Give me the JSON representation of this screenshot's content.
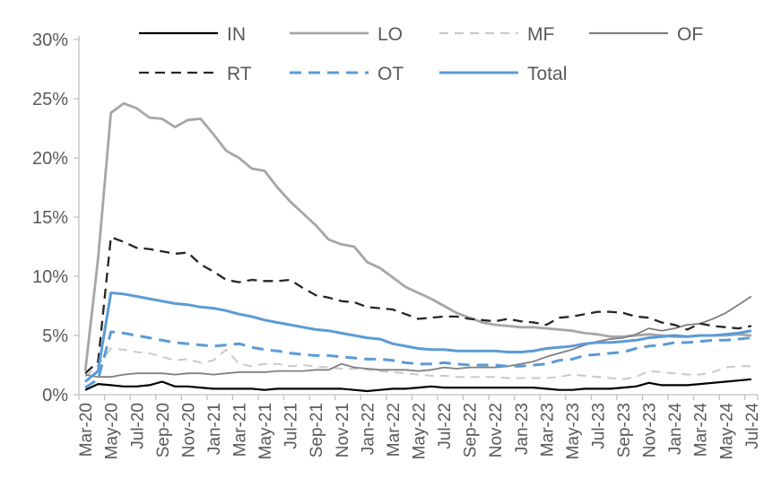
{
  "chart_data": {
    "type": "line",
    "title": "",
    "y_axis": {
      "min": 0,
      "max": 30,
      "tick_step": 5,
      "tick_labels": [
        "0%",
        "5%",
        "10%",
        "15%",
        "20%",
        "25%",
        "30%"
      ],
      "grid": false
    },
    "x_axis": {
      "categories": [
        "Mar-20",
        "Apr-20",
        "May-20",
        "Jun-20",
        "Jul-20",
        "Aug-20",
        "Sep-20",
        "Oct-20",
        "Nov-20",
        "Dec-20",
        "Jan-21",
        "Feb-21",
        "Mar-21",
        "Apr-21",
        "May-21",
        "Jun-21",
        "Jul-21",
        "Aug-21",
        "Sep-21",
        "Oct-21",
        "Nov-21",
        "Dec-21",
        "Jan-22",
        "Feb-22",
        "Mar-22",
        "Apr-22",
        "May-22",
        "Jun-22",
        "Jul-22",
        "Aug-22",
        "Sep-22",
        "Oct-22",
        "Nov-22",
        "Dec-22",
        "Jan-23",
        "Feb-23",
        "Mar-23",
        "Apr-23",
        "May-23",
        "Jun-23",
        "Jul-23",
        "Aug-23",
        "Sep-23",
        "Oct-23",
        "Nov-23",
        "Dec-23",
        "Jan-24",
        "Feb-24",
        "Mar-24",
        "Apr-24",
        "May-24",
        "Jun-24",
        "Jul-24"
      ],
      "label_every": 2,
      "tick_labels": [
        "Mar-20",
        "May-20",
        "Jul-20",
        "Sep-20",
        "Nov-20",
        "Jan-21",
        "Mar-21",
        "May-21",
        "Jul-21",
        "Sep-21",
        "Nov-21",
        "Jan-22",
        "Mar-22",
        "May-22",
        "Jul-22",
        "Sep-22",
        "Nov-22",
        "Jan-23",
        "Mar-23",
        "May-23",
        "Jul-23",
        "Sep-23",
        "Nov-23",
        "Jan-24",
        "Mar-24",
        "May-24",
        "Jul-24"
      ]
    },
    "legend": {
      "position": "top",
      "rows": [
        [
          "IN",
          "LO",
          "MF",
          "OF"
        ],
        [
          "RT",
          "OT",
          "Total"
        ]
      ]
    },
    "series": [
      {
        "name": "IN",
        "color": "#000000",
        "style": "solid",
        "width": 2.2,
        "dash": "",
        "values": [
          0.4,
          0.9,
          0.8,
          0.7,
          0.7,
          0.8,
          1.1,
          0.7,
          0.7,
          0.6,
          0.5,
          0.5,
          0.5,
          0.5,
          0.4,
          0.5,
          0.5,
          0.5,
          0.5,
          0.5,
          0.5,
          0.4,
          0.3,
          0.4,
          0.5,
          0.5,
          0.6,
          0.7,
          0.6,
          0.6,
          0.6,
          0.6,
          0.6,
          0.6,
          0.6,
          0.6,
          0.5,
          0.4,
          0.4,
          0.5,
          0.5,
          0.5,
          0.6,
          0.7,
          1.0,
          0.8,
          0.8,
          0.8,
          0.9,
          1.0,
          1.1,
          1.2,
          1.3
        ]
      },
      {
        "name": "LO",
        "color": "#A6A6A6",
        "style": "solid",
        "width": 2.8,
        "dash": "",
        "values": [
          2.0,
          11.5,
          23.8,
          24.6,
          24.2,
          23.4,
          23.3,
          22.6,
          23.2,
          23.3,
          22.0,
          20.6,
          20.0,
          19.1,
          18.9,
          17.5,
          16.3,
          15.3,
          14.3,
          13.1,
          12.7,
          12.5,
          11.2,
          10.7,
          9.9,
          9.1,
          8.6,
          8.1,
          7.5,
          6.9,
          6.5,
          6.1,
          5.9,
          5.8,
          5.7,
          5.7,
          5.6,
          5.5,
          5.4,
          5.2,
          5.1,
          4.9,
          4.9,
          5.0,
          5.1,
          5.0,
          4.9,
          4.9,
          5.0,
          5.0,
          5.0,
          5.1,
          5.0
        ]
      },
      {
        "name": "MF",
        "color": "#C9C9C9",
        "style": "dashed",
        "width": 2.0,
        "dash": "10,7",
        "values": [
          1.5,
          2.5,
          3.9,
          3.8,
          3.6,
          3.5,
          3.2,
          2.9,
          3.0,
          2.7,
          2.9,
          3.8,
          2.6,
          2.4,
          2.6,
          2.6,
          2.4,
          2.5,
          2.4,
          2.3,
          2.2,
          2.2,
          2.1,
          2.0,
          1.9,
          1.8,
          1.7,
          1.6,
          1.6,
          1.5,
          1.5,
          1.5,
          1.5,
          1.4,
          1.4,
          1.4,
          1.4,
          1.5,
          1.7,
          1.6,
          1.5,
          1.4,
          1.3,
          1.5,
          2.0,
          1.9,
          1.8,
          1.7,
          1.7,
          1.9,
          2.3,
          2.4,
          2.4
        ]
      },
      {
        "name": "OF",
        "color": "#7F7F7F",
        "style": "solid",
        "width": 1.8,
        "dash": "",
        "values": [
          1.7,
          1.5,
          1.5,
          1.7,
          1.8,
          1.8,
          1.8,
          1.7,
          1.8,
          1.8,
          1.7,
          1.8,
          1.9,
          1.9,
          1.9,
          2.0,
          2.0,
          2.0,
          2.1,
          2.1,
          2.6,
          2.3,
          2.2,
          2.1,
          2.1,
          2.1,
          2.0,
          2.1,
          2.3,
          2.2,
          2.3,
          2.3,
          2.3,
          2.4,
          2.6,
          2.8,
          3.2,
          3.5,
          3.8,
          4.2,
          4.5,
          4.7,
          4.8,
          5.1,
          5.6,
          5.4,
          5.6,
          5.9,
          6.0,
          6.4,
          6.9,
          7.6,
          8.3
        ]
      },
      {
        "name": "RT",
        "color": "#262626",
        "style": "dashed",
        "width": 2.3,
        "dash": "11,7",
        "values": [
          1.8,
          2.8,
          13.3,
          12.9,
          12.4,
          12.3,
          12.1,
          11.9,
          12.0,
          11.0,
          10.4,
          9.7,
          9.5,
          9.7,
          9.6,
          9.6,
          9.7,
          9.0,
          8.4,
          8.2,
          7.9,
          7.8,
          7.4,
          7.3,
          7.2,
          6.8,
          6.4,
          6.5,
          6.6,
          6.6,
          6.4,
          6.3,
          6.2,
          6.4,
          6.2,
          6.1,
          5.9,
          6.5,
          6.6,
          6.8,
          7.0,
          7.0,
          6.9,
          6.6,
          6.5,
          6.1,
          5.9,
          5.5,
          6.0,
          5.8,
          5.7,
          5.6,
          5.8
        ]
      },
      {
        "name": "OT",
        "color": "#5B9BD5",
        "style": "dashed",
        "width": 3.0,
        "dash": "13,8",
        "values": [
          0.6,
          1.3,
          5.3,
          5.2,
          5.0,
          4.8,
          4.6,
          4.4,
          4.3,
          4.2,
          4.1,
          4.2,
          4.3,
          4.0,
          3.8,
          3.7,
          3.5,
          3.4,
          3.3,
          3.3,
          3.2,
          3.1,
          3.0,
          3.0,
          2.9,
          2.7,
          2.6,
          2.6,
          2.7,
          2.6,
          2.5,
          2.5,
          2.5,
          2.4,
          2.4,
          2.5,
          2.6,
          2.9,
          3.0,
          3.3,
          3.4,
          3.5,
          3.6,
          3.9,
          4.1,
          4.2,
          4.4,
          4.4,
          4.5,
          4.6,
          4.6,
          4.7,
          4.8
        ]
      },
      {
        "name": "Total",
        "color": "#5B9BD5",
        "style": "solid",
        "width": 3.0,
        "dash": "",
        "values": [
          1.1,
          2.0,
          8.6,
          8.5,
          8.3,
          8.1,
          7.9,
          7.7,
          7.6,
          7.4,
          7.3,
          7.1,
          6.8,
          6.6,
          6.3,
          6.1,
          5.9,
          5.7,
          5.5,
          5.4,
          5.2,
          5.0,
          4.8,
          4.7,
          4.3,
          4.1,
          3.9,
          3.8,
          3.8,
          3.7,
          3.7,
          3.7,
          3.7,
          3.6,
          3.6,
          3.7,
          3.9,
          4.0,
          4.1,
          4.3,
          4.4,
          4.4,
          4.5,
          4.6,
          4.8,
          4.9,
          5.0,
          4.9,
          5.0,
          5.0,
          5.1,
          5.2,
          5.4
        ]
      }
    ],
    "axis_color": "#BFBFBF",
    "label_color": "#595959"
  }
}
